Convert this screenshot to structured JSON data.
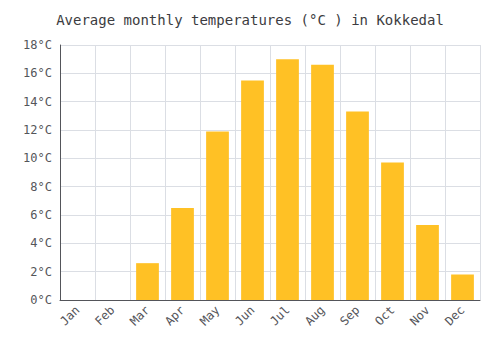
{
  "chart_data": {
    "type": "bar",
    "title": "Average monthly temperatures (°C ) in Kokkedal",
    "categories": [
      "Jan",
      "Feb",
      "Mar",
      "Apr",
      "May",
      "Jun",
      "Jul",
      "Aug",
      "Sep",
      "Oct",
      "Nov",
      "Dec"
    ],
    "values": [
      0,
      0,
      2.6,
      6.5,
      11.9,
      15.5,
      17.0,
      16.6,
      13.3,
      9.7,
      5.3,
      1.8
    ],
    "color": "#FFC125",
    "ylim": [
      0,
      18
    ],
    "yticks": [
      {
        "value": 0,
        "label": "0°C"
      },
      {
        "value": 2,
        "label": "2°C"
      },
      {
        "value": 4,
        "label": "4°C"
      },
      {
        "value": 6,
        "label": "6°C"
      },
      {
        "value": 8,
        "label": "8°C"
      },
      {
        "value": 10,
        "label": "10°C"
      },
      {
        "value": 12,
        "label": "12°C"
      },
      {
        "value": 14,
        "label": "14°C"
      },
      {
        "value": 16,
        "label": "16°C"
      },
      {
        "value": 18,
        "label": "18°C"
      }
    ],
    "grid": true
  }
}
